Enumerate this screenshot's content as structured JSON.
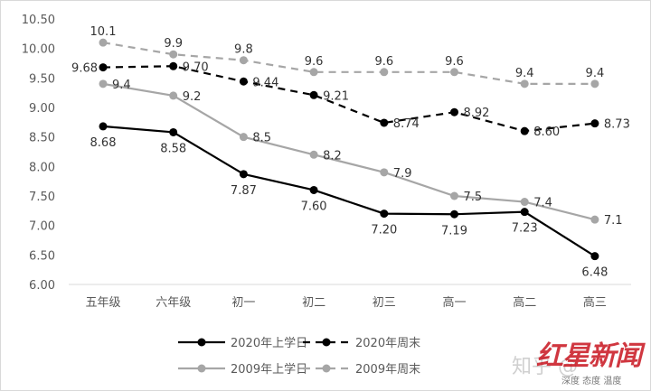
{
  "chart_data": {
    "type": "line",
    "title": "",
    "xlabel": "",
    "ylabel": "",
    "categories": [
      "五年级",
      "六年级",
      "初一",
      "初二",
      "初三",
      "高一",
      "高二",
      "高三"
    ],
    "ylim": [
      6.0,
      10.5
    ],
    "yticks": [
      "6.00",
      "6.50",
      "7.00",
      "7.50",
      "8.00",
      "8.50",
      "9.00",
      "9.50",
      "10.00",
      "10.50"
    ],
    "grid": false,
    "legend_position": "bottom",
    "series": [
      {
        "name": "2020年上学日",
        "color": "#000000",
        "dashed": false,
        "values": [
          8.68,
          8.58,
          7.87,
          7.6,
          7.2,
          7.19,
          7.23,
          6.48
        ],
        "labels": [
          "8.68",
          "8.58",
          "7.87",
          "7.60",
          "7.20",
          "7.19",
          "7.23",
          "6.48"
        ]
      },
      {
        "name": "2020年周末",
        "color": "#000000",
        "dashed": true,
        "values": [
          9.68,
          9.7,
          9.44,
          9.21,
          8.74,
          8.92,
          8.6,
          8.73
        ],
        "labels": [
          "9.68",
          "9.70",
          "9.44",
          "9.21",
          "8.74",
          "8.92",
          "8.60",
          "8.73"
        ]
      },
      {
        "name": "2009年上学日",
        "color": "#a6a6a6",
        "dashed": false,
        "values": [
          9.4,
          9.2,
          8.5,
          8.2,
          7.9,
          7.5,
          7.4,
          7.1
        ],
        "labels": [
          "9.4",
          "9.2",
          "8.5",
          "8.2",
          "7.9",
          "7.5",
          "7.4",
          "7.1"
        ]
      },
      {
        "name": "2009年周末",
        "color": "#a6a6a6",
        "dashed": true,
        "values": [
          10.1,
          9.9,
          9.8,
          9.6,
          9.6,
          9.6,
          9.4,
          9.4
        ],
        "labels": [
          "10.1",
          "9.9",
          "9.8",
          "9.6",
          "9.6",
          "9.6",
          "9.4",
          "9.4"
        ]
      }
    ]
  },
  "watermark": {
    "site": "知乎 @",
    "logo": "红星新闻",
    "slogan": "深度 态度 温度"
  }
}
